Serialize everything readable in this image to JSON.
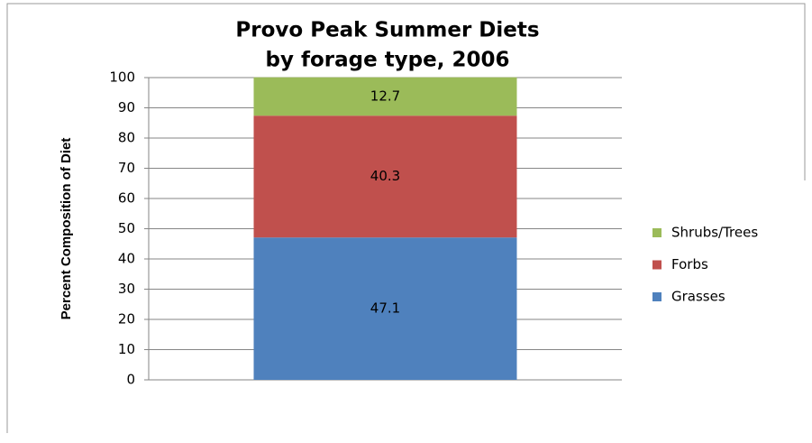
{
  "chart_data": {
    "type": "stacked_bar",
    "title": [
      "Provo Peak Summer Diets",
      "by forage type, 2006"
    ],
    "y_label": "Percent Composition of Diet",
    "categories": [
      null
    ],
    "series": [
      {
        "name": "Grasses",
        "color": "#4f81bd",
        "values": [
          47.1
        ]
      },
      {
        "name": "Forbs",
        "color": "#c0504d",
        "values": [
          40.3
        ]
      },
      {
        "name": "Shrubs/Trees",
        "color": "#9bbb59",
        "values": [
          12.7
        ]
      }
    ],
    "ylim": [
      0,
      100
    ],
    "yticks": [
      0,
      10,
      20,
      30,
      40,
      50,
      60,
      70,
      80,
      90,
      100
    ],
    "grid": true,
    "legend": "right"
  }
}
